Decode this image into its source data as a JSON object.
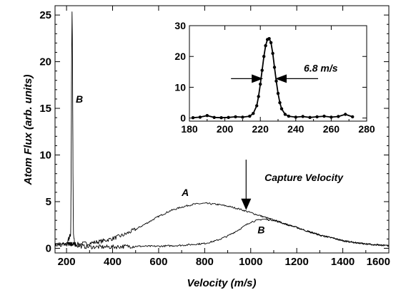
{
  "chart_data": [
    {
      "id": "main",
      "type": "line",
      "title": "",
      "xlabel": "Velocity (m/s)",
      "ylabel": "Atom Flux (arb. units)",
      "xlim": [
        150,
        1600
      ],
      "ylim": [
        -0.5,
        26
      ],
      "xticks": [
        200,
        400,
        600,
        800,
        1000,
        1200,
        1400,
        1600
      ],
      "yticks": [
        0,
        5,
        10,
        15,
        20,
        25
      ],
      "grid": false,
      "series": [
        {
          "name": "A",
          "x": [
            150,
            200,
            250,
            300,
            350,
            400,
            450,
            500,
            550,
            600,
            650,
            700,
            750,
            800,
            850,
            900,
            950,
            1000,
            1050,
            1100,
            1150,
            1200,
            1250,
            1300,
            1350,
            1400,
            1450,
            1500,
            1550,
            1600
          ],
          "y": [
            0.3,
            0.4,
            0.4,
            0.5,
            0.7,
            1.0,
            1.4,
            2.0,
            2.7,
            3.4,
            4.0,
            4.4,
            4.7,
            4.8,
            4.7,
            4.5,
            4.2,
            3.8,
            3.4,
            3.0,
            2.6,
            2.2,
            1.8,
            1.4,
            1.1,
            0.8,
            0.6,
            0.45,
            0.35,
            0.25
          ]
        },
        {
          "name": "B",
          "x": [
            150,
            200,
            218,
            220,
            222,
            224,
            226,
            228,
            230,
            235,
            250,
            300,
            350,
            400,
            450,
            500,
            550,
            600,
            650,
            700,
            750,
            800,
            850,
            900,
            950,
            1000,
            1050,
            1100,
            1150,
            1200,
            1250,
            1300,
            1350,
            1400,
            1450,
            1500,
            1550,
            1600
          ],
          "y": [
            0.3,
            0.4,
            1.5,
            8.0,
            20.0,
            25.5,
            20.0,
            8.0,
            1.5,
            0.4,
            0.2,
            0.1,
            0.1,
            0.1,
            0.15,
            0.2,
            0.2,
            0.2,
            0.25,
            0.3,
            0.4,
            0.5,
            0.8,
            1.3,
            2.0,
            2.8,
            3.1,
            3.0,
            2.6,
            2.2,
            1.8,
            1.4,
            1.1,
            0.8,
            0.6,
            0.45,
            0.35,
            0.25
          ]
        }
      ],
      "annotations": [
        {
          "text": "A",
          "x": 700,
          "y": 5.6
        },
        {
          "text": "B",
          "x": 1030,
          "y": 1.6
        },
        {
          "text": "B",
          "x": 240,
          "y": 15.6
        },
        {
          "text": "Capture Velocity",
          "x": 1060,
          "y": 7.2
        }
      ],
      "capture_velocity": {
        "x": 980,
        "from_y": 9.5,
        "to_y": 4.1
      }
    },
    {
      "id": "inset",
      "type": "line",
      "title": "",
      "xlabel": "",
      "ylabel": "",
      "xlim": [
        180,
        280
      ],
      "ylim": [
        -1,
        30
      ],
      "xticks": [
        180,
        200,
        220,
        240,
        260,
        280
      ],
      "yticks": [
        0,
        10,
        20,
        30
      ],
      "grid": false,
      "series": [
        {
          "x": [
            182,
            186,
            190,
            194,
            198,
            202,
            206,
            210,
            214,
            216,
            218,
            219,
            220,
            221,
            222,
            223,
            224,
            225,
            226,
            227,
            228,
            229,
            230,
            231,
            232,
            234,
            236,
            240,
            244,
            248,
            252,
            256,
            260,
            264,
            268,
            272
          ],
          "y": [
            0.1,
            0.3,
            0.8,
            0.2,
            0.1,
            0.2,
            0.4,
            0.3,
            0.6,
            1.5,
            4.0,
            7.0,
            11.0,
            15.5,
            20.0,
            23.5,
            25.5,
            25.8,
            24.5,
            21.0,
            16.5,
            12.0,
            8.0,
            5.0,
            3.0,
            1.2,
            0.6,
            0.3,
            0.5,
            0.2,
            0.4,
            0.6,
            0.3,
            0.5,
            1.2,
            0.4
          ]
        }
      ],
      "fwhm": {
        "label": "6.8 m/s",
        "left_x": 221.6,
        "right_x": 228.4,
        "y": 12.8
      }
    }
  ]
}
